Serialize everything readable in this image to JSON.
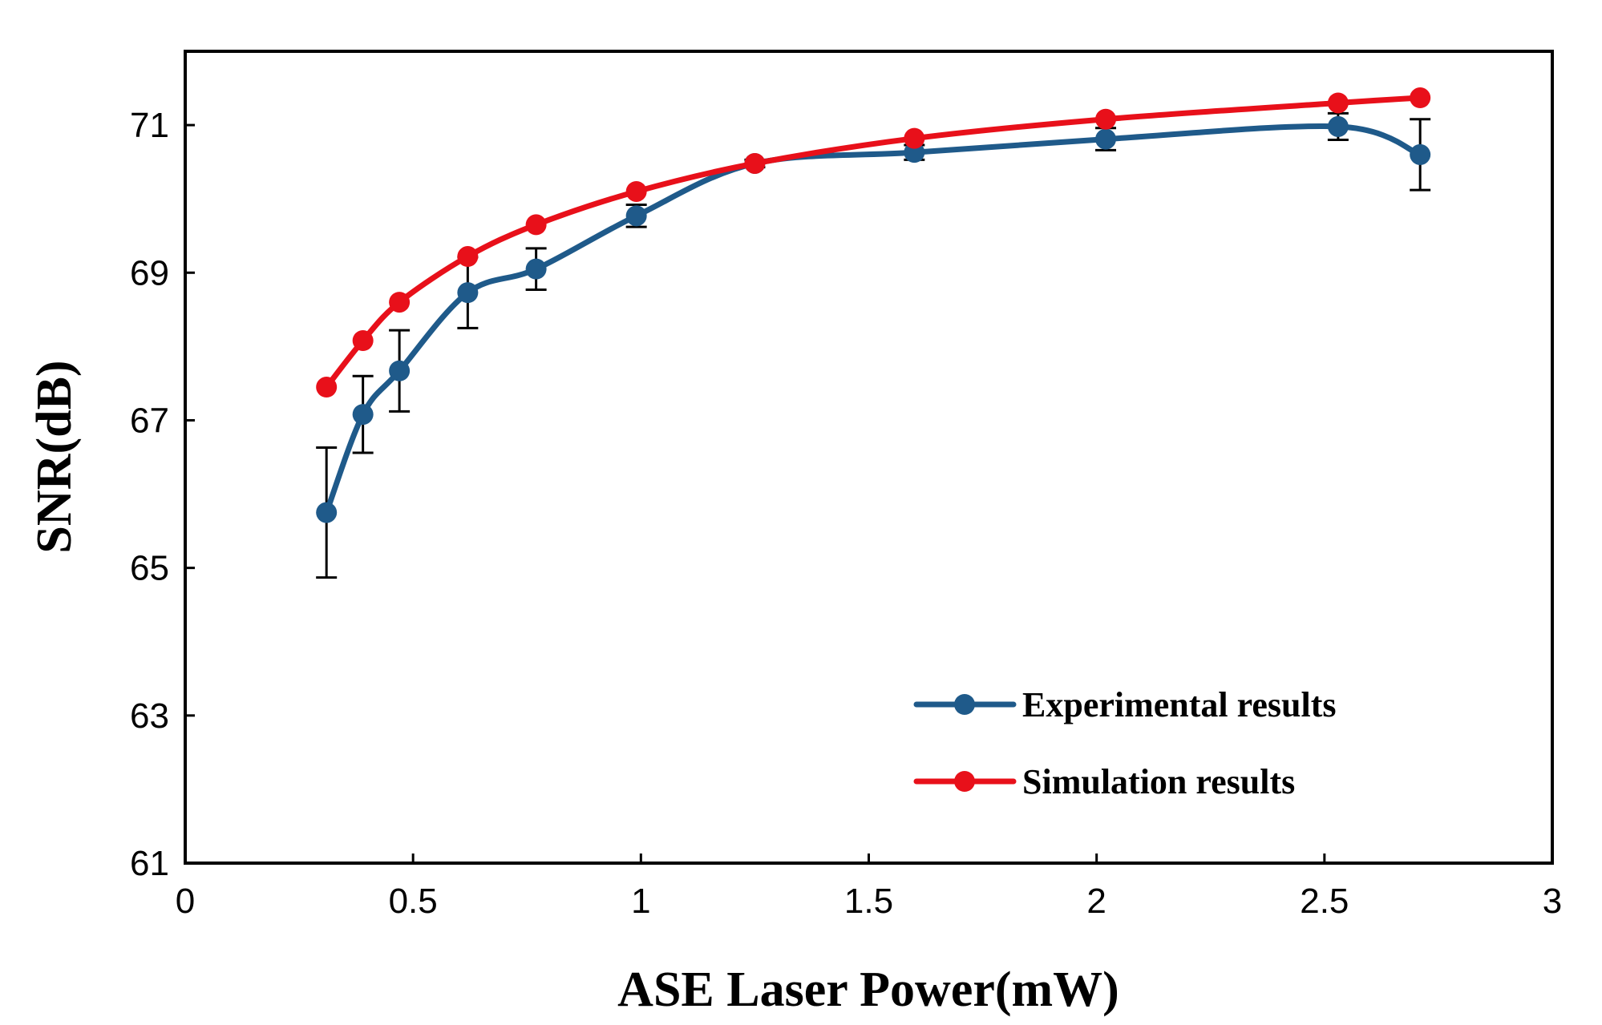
{
  "chart_data": {
    "type": "line",
    "title": "",
    "xlabel": "ASE Laser Power(mW)",
    "ylabel": "SNR(dB)",
    "xlim": [
      0,
      3
    ],
    "ylim": [
      61,
      72
    ],
    "xticks": [
      0,
      0.5,
      1,
      1.5,
      2,
      2.5,
      3
    ],
    "yticks": [
      61,
      63,
      65,
      67,
      69,
      71
    ],
    "xtick_labels": [
      "0",
      "0.5",
      "1",
      "1.5",
      "2",
      "2.5",
      "3"
    ],
    "ytick_labels": [
      "61",
      "63",
      "65",
      "67",
      "69",
      "71"
    ],
    "grid": false,
    "legend_position": "bottom-right",
    "series": [
      {
        "name": "Experimental results",
        "color": "#1f5a8a",
        "x": [
          0.31,
          0.39,
          0.47,
          0.62,
          0.77,
          0.99,
          1.25,
          1.6,
          2.02,
          2.53,
          2.71
        ],
        "y": [
          65.75,
          67.08,
          67.67,
          68.73,
          69.05,
          69.77,
          70.48,
          70.63,
          70.81,
          70.98,
          70.6
        ],
        "error": [
          0.88,
          0.52,
          0.55,
          0.48,
          0.28,
          0.15,
          0.05,
          0.1,
          0.15,
          0.18,
          0.48
        ]
      },
      {
        "name": "Simulation results",
        "color": "#e8101a",
        "x": [
          0.31,
          0.39,
          0.47,
          0.62,
          0.77,
          0.99,
          1.25,
          1.6,
          2.02,
          2.53,
          2.71
        ],
        "y": [
          67.45,
          68.08,
          68.6,
          69.22,
          69.65,
          70.1,
          70.48,
          70.82,
          71.08,
          71.3,
          71.37
        ]
      }
    ]
  }
}
